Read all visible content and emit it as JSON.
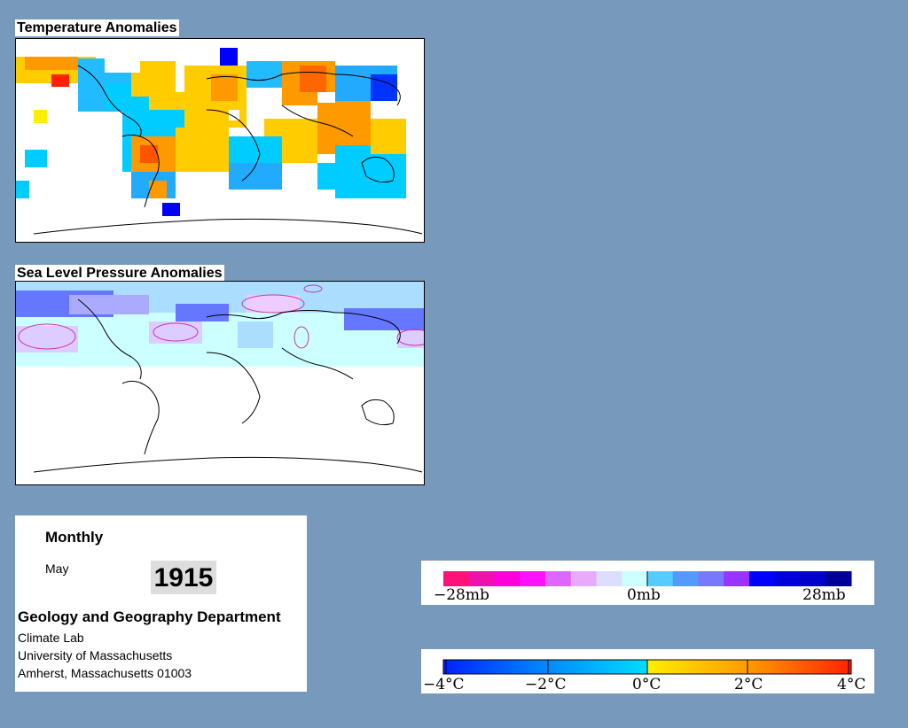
{
  "temperature_panel": {
    "title": "Temperature Anomalies"
  },
  "pressure_panel": {
    "title": "Sea Level Pressure Anomalies"
  },
  "info": {
    "period": "Monthly",
    "month": "May",
    "year": "1915",
    "department": "Geology and Geography Department",
    "lab": "Climate Lab",
    "university": "University of Massachusetts",
    "address": "Amherst, Massachusetts 01003"
  },
  "pressure_legend": {
    "labels": [
      "−28mb",
      "0mb",
      "28mb"
    ],
    "colors": [
      "#ff1177",
      "#ee11aa",
      "#ff00dd",
      "#ff11ff",
      "#dd66ff",
      "#e8aaff",
      "#ddddff",
      "#ccffff",
      "#55ccff",
      "#5599ff",
      "#7777ff",
      "#9933ff",
      "#0000ff",
      "#0000dd",
      "#0000cc",
      "#000099"
    ]
  },
  "temperature_legend": {
    "labels": [
      "−4°C",
      "−2°C",
      "0°C",
      "2°C",
      "4°C"
    ],
    "colors": [
      "#0022ff",
      "#0088ff",
      "#00ccff",
      "#ffee00",
      "#ff9900",
      "#ff2200"
    ]
  },
  "colors": {
    "background": "#7799bb",
    "warm": "#ff9900",
    "warm_light": "#ffcc00",
    "hot": "#ff4400",
    "cool": "#00ccff",
    "cool_mid": "#22aaff",
    "cold": "#0000ff",
    "pressure_low": "#6677ff",
    "pressure_mid": "#aaddff",
    "pressure_neutral": "#ccffff",
    "pressure_high": "#eeccff"
  }
}
